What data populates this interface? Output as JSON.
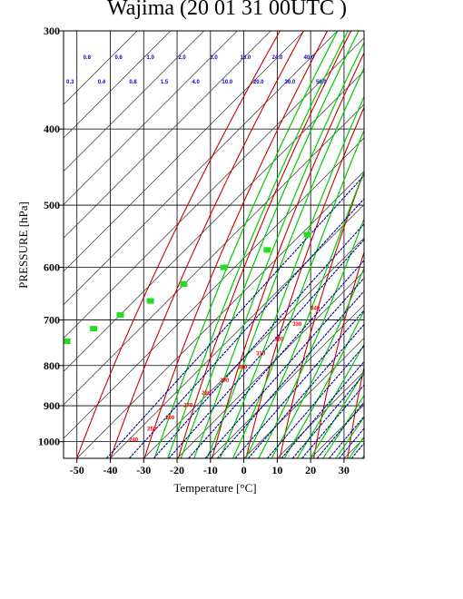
{
  "chart_data": {
    "type": "skew-t diagram",
    "title": "Wajima (20 01 31 00UTC )",
    "xlabel": "Temperature  [°C]",
    "ylabel": "PRESSURE [hPa]",
    "x_ticks": [
      -50,
      -40,
      -30,
      -20,
      -10,
      0,
      10,
      20,
      30
    ],
    "x_tick_labels": [
      "-50",
      "-40",
      "-30",
      "-20",
      "-10",
      "0",
      "10",
      "20",
      "30"
    ],
    "y_ticks": [
      300,
      400,
      500,
      600,
      700,
      800,
      900,
      1000
    ],
    "y_tick_labels": [
      "300",
      "400",
      "500",
      "600",
      "700",
      "800",
      "900",
      "1000"
    ],
    "xlim": [
      -54,
      36
    ],
    "ylim": [
      1050,
      300
    ],
    "y_scale": "log",
    "grid": true,
    "colors": {
      "isotherm": "#000000",
      "dry_adiabat": "#cc0000",
      "moist_adiabat": "#00cc00",
      "mixing_ratio": "#000099",
      "dry_adiabat_label": "#ff0000",
      "moist_adiabat_label": "#22dd22",
      "mixing_ratio_label": "#0000cc"
    },
    "mixing_ratio_labels_row1": [
      "0.8",
      "0.6",
      "1.0",
      "2.0",
      "3.0",
      "16.0",
      "24.0",
      "40.0"
    ],
    "mixing_ratio_labels_row2": [
      "0.3",
      "0.4",
      "0.8",
      "1.5",
      "4.0",
      "10.0",
      "20.0",
      "30.0",
      "50.0"
    ],
    "dry_adiabat_labels": [
      "240",
      "250",
      "260",
      "270",
      "280",
      "290",
      "300",
      "310",
      "320",
      "330",
      "340"
    ],
    "moist_adiabat_labels": [
      "",
      "",
      "",
      "",
      "",
      "",
      "",
      ""
    ]
  }
}
